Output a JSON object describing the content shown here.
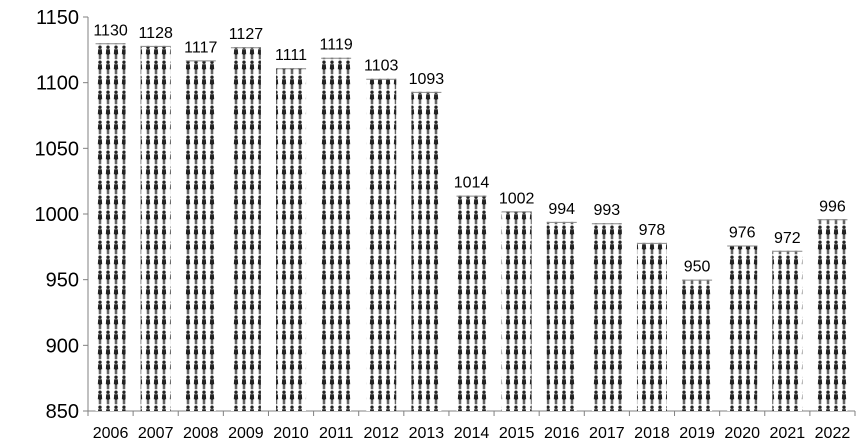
{
  "chart_data": {
    "type": "bar",
    "title": "",
    "xlabel": "",
    "ylabel": "",
    "categories": [
      "2006",
      "2007",
      "2008",
      "2009",
      "2010",
      "2011",
      "2012",
      "2013",
      "2014",
      "2015",
      "2016",
      "2017",
      "2018",
      "2019",
      "2020",
      "2021",
      "2022"
    ],
    "values": [
      1130,
      1128,
      1117,
      1127,
      1111,
      1119,
      1103,
      1093,
      1014,
      1002,
      994,
      993,
      978,
      950,
      976,
      972,
      996
    ],
    "value_labels": [
      "1130",
      "1128",
      "1117",
      "1127",
      "1111",
      "1119",
      "1103",
      "1093",
      "1014",
      "1002",
      "994",
      "993",
      "978",
      "950",
      "976",
      "972",
      "996"
    ],
    "ylim": [
      850,
      1150
    ],
    "yticks": [
      850,
      900,
      950,
      1000,
      1050,
      1100,
      1150
    ],
    "ytick_labels": [
      "850",
      "900",
      "950",
      "1000",
      "1050",
      "1100",
      "1150"
    ],
    "grid": false,
    "legend": "none",
    "bar_style": "pictograph-people",
    "bar_color": "#2a2a2a"
  }
}
